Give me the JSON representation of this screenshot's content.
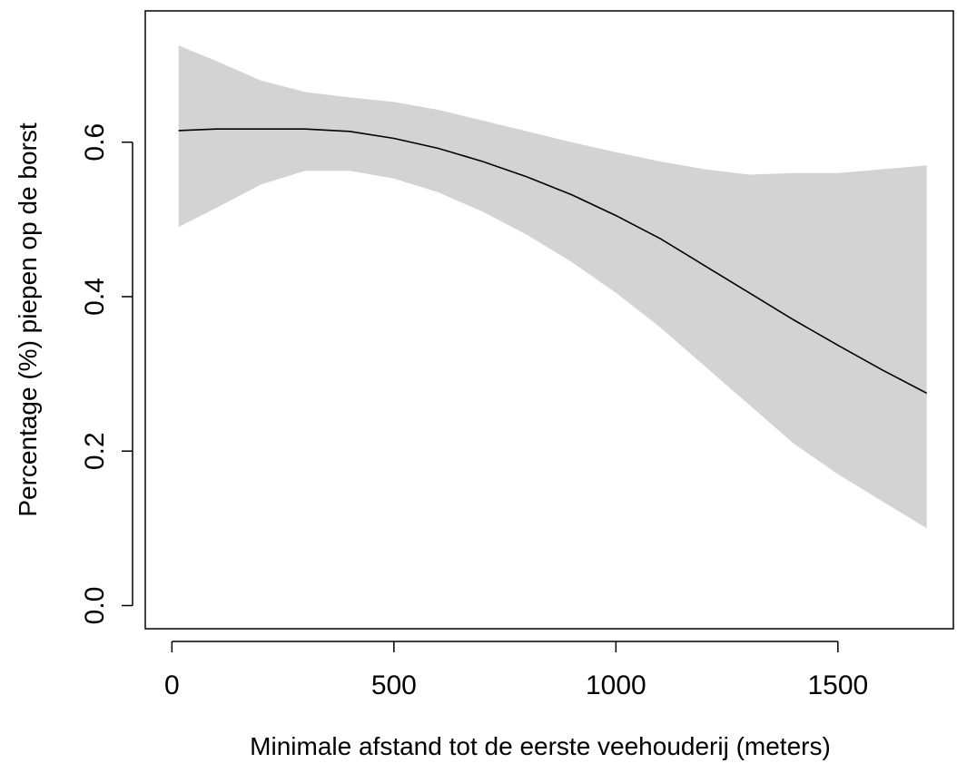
{
  "chart_data": {
    "type": "line",
    "title": "",
    "xlabel": "Minimale afstand tot de eerste veehouderij (meters)",
    "ylabel": "Percentage (%) piepen op de borst",
    "xlim": [
      -60,
      1760
    ],
    "ylim": [
      -0.03,
      0.77
    ],
    "xticks": [
      0,
      500,
      1000,
      1500
    ],
    "xtick_labels": [
      "0",
      "500",
      "1000",
      "1500"
    ],
    "yticks": [
      0.0,
      0.2,
      0.4,
      0.6
    ],
    "ytick_labels": [
      "0.0",
      "0.2",
      "0.4",
      "0.6"
    ],
    "grid": false,
    "legend": "none",
    "colors": {
      "line": "#000000",
      "band": "#d3d3d3",
      "axes": "#000000"
    },
    "series": [
      {
        "x": [
          15,
          100,
          200,
          300,
          400,
          500,
          600,
          700,
          800,
          900,
          1000,
          1100,
          1200,
          1300,
          1400,
          1500,
          1600,
          1700
        ],
        "values": [
          0.615,
          0.617,
          0.617,
          0.617,
          0.614,
          0.605,
          0.592,
          0.575,
          0.555,
          0.532,
          0.505,
          0.475,
          0.44,
          0.405,
          0.37,
          0.337,
          0.305,
          0.275
        ],
        "lower": [
          0.49,
          0.515,
          0.545,
          0.563,
          0.563,
          0.553,
          0.535,
          0.51,
          0.48,
          0.445,
          0.405,
          0.36,
          0.31,
          0.26,
          0.21,
          0.17,
          0.135,
          0.1
        ],
        "upper": [
          0.725,
          0.705,
          0.68,
          0.665,
          0.658,
          0.652,
          0.642,
          0.628,
          0.614,
          0.6,
          0.587,
          0.575,
          0.565,
          0.558,
          0.56,
          0.56,
          0.565,
          0.57
        ]
      }
    ]
  }
}
